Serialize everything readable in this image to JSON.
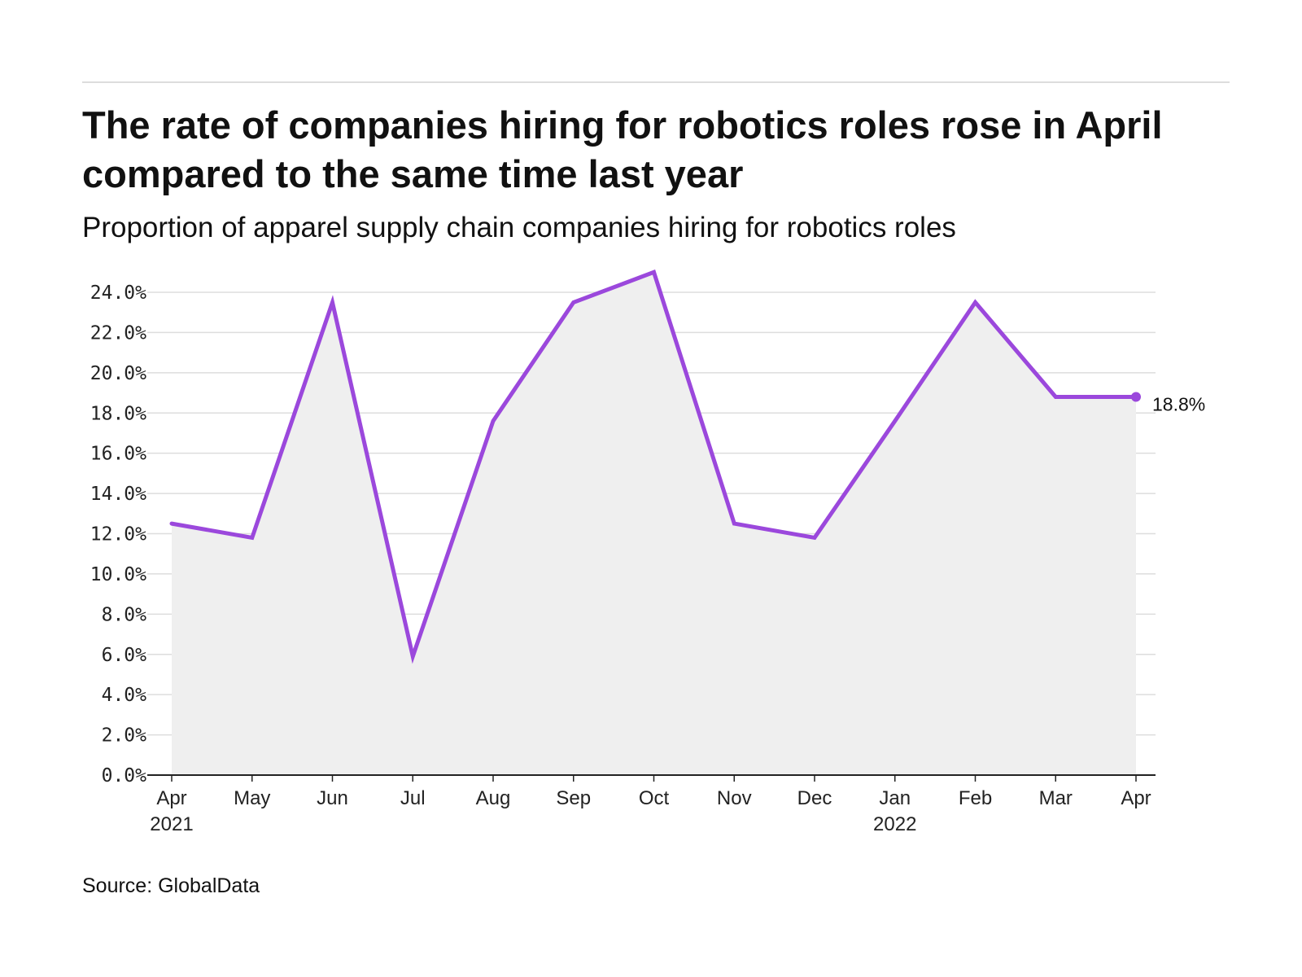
{
  "header": {
    "title": "The rate of companies hiring for robotics roles rose in April compared to the same time last year",
    "subtitle": "Proportion of apparel supply chain companies hiring for robotics roles"
  },
  "footer": {
    "source": "Source: GlobalData"
  },
  "colors": {
    "line": "#9b48dc",
    "area": "#efefef",
    "grid": "#dddddd",
    "axis": "#222222"
  },
  "chart_data": {
    "type": "area",
    "title": "The rate of companies hiring for robotics roles rose in April compared to the same time last year",
    "subtitle": "Proportion of apparel supply chain companies hiring for robotics roles",
    "xlabel": "",
    "ylabel": "",
    "x": [
      "Apr",
      "May",
      "Jun",
      "Jul",
      "Aug",
      "Sep",
      "Oct",
      "Nov",
      "Dec",
      "Jan",
      "Feb",
      "Mar",
      "Apr"
    ],
    "x_sublabels": [
      "2021",
      "",
      "",
      "",
      "",
      "",
      "",
      "",
      "",
      "2022",
      "",
      "",
      ""
    ],
    "series": [
      {
        "values": [
          12.5,
          11.8,
          23.5,
          5.9,
          17.6,
          23.5,
          25.0,
          12.5,
          11.8,
          17.6,
          23.5,
          18.8,
          18.8
        ]
      }
    ],
    "ylim": [
      0,
      24
    ],
    "yticks": [
      0,
      2,
      4,
      6,
      8,
      10,
      12,
      14,
      16,
      18,
      20,
      22,
      24
    ],
    "ytick_labels": [
      "0.0%",
      "2.0%",
      "4.0%",
      "6.0%",
      "8.0%",
      "10.0%",
      "12.0%",
      "14.0%",
      "16.0%",
      "18.0%",
      "20.0%",
      "22.0%",
      "24.0%"
    ],
    "end_label": "18.8%",
    "grid": true,
    "legend": "none"
  }
}
